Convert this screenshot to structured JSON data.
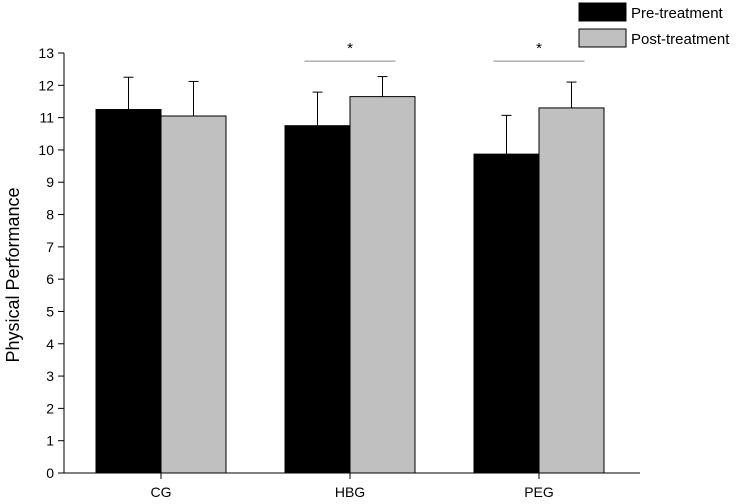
{
  "chart_data": {
    "type": "bar",
    "title": "",
    "xlabel": "",
    "ylabel": "Physical Performance",
    "ylim": [
      0,
      13
    ],
    "yticks": [
      0,
      1,
      2,
      3,
      4,
      5,
      6,
      7,
      8,
      9,
      10,
      11,
      12,
      13
    ],
    "categories": [
      "CG",
      "HBG",
      "PEG"
    ],
    "series": [
      {
        "name": "Pre-treatment",
        "color": "#000000",
        "values": [
          11.25,
          10.75,
          9.87
        ],
        "errors": [
          1.0,
          1.04,
          1.2
        ]
      },
      {
        "name": "Post-treatment",
        "color": "#c0c0c0",
        "values": [
          11.05,
          11.65,
          11.3
        ],
        "errors": [
          1.07,
          0.62,
          0.8
        ]
      }
    ],
    "significance": [
      {
        "category": "HBG",
        "label": "*",
        "y": 12.75
      },
      {
        "category": "PEG",
        "label": "*",
        "y": 12.75
      }
    ],
    "legend_position": "top-right",
    "grid": false
  }
}
